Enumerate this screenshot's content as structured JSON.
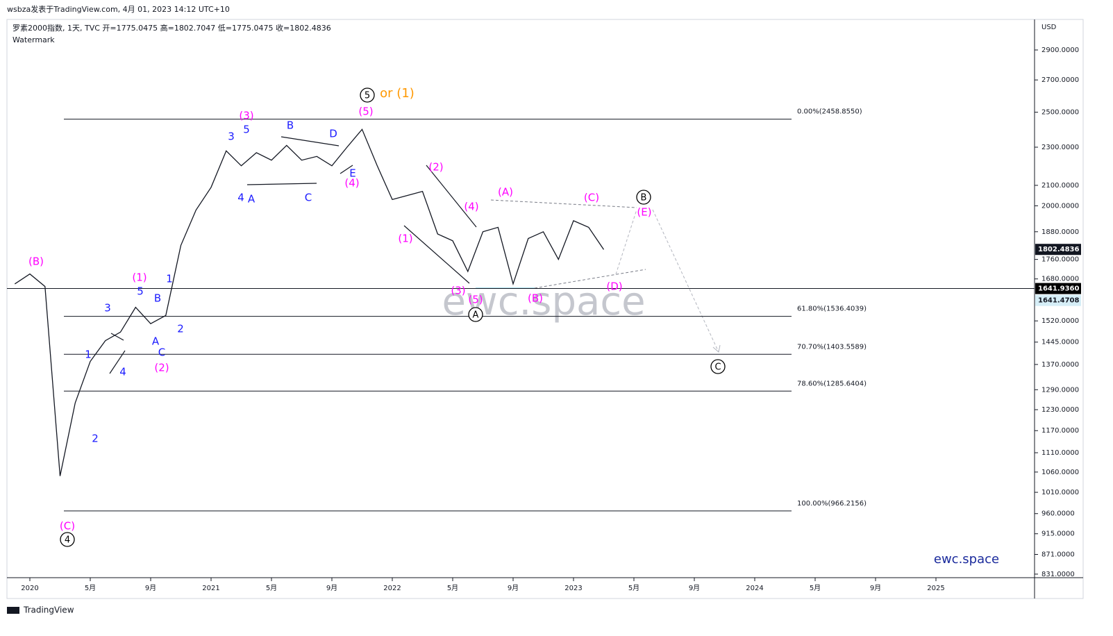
{
  "header": {
    "byline": "wsbza发表于TradingView.com, 4月 01, 2023 14:12 UTC+10",
    "symbol_line": "罗素2000指数, 1天, TVC  开=1775.0475  高=1802.7047  低=1775.0475  收=1802.4836",
    "watermark_label": "Watermark"
  },
  "footer": {
    "brand": "TradingView"
  },
  "chart_data": {
    "type": "line",
    "log": true,
    "y_label": "USD",
    "color": "#131722",
    "x": [
      "2019-12",
      "2020-01",
      "2020-02",
      "2020-03",
      "2020-04",
      "2020-05",
      "2020-06",
      "2020-07",
      "2020-08",
      "2020-09",
      "2020-10",
      "2020-11",
      "2020-12",
      "2021-01",
      "2021-02",
      "2021-03",
      "2021-04",
      "2021-05",
      "2021-06",
      "2021-07",
      "2021-08",
      "2021-09",
      "2021-10",
      "2021-11",
      "2021-12",
      "2022-01",
      "2022-02",
      "2022-03",
      "2022-04",
      "2022-05",
      "2022-06",
      "2022-07",
      "2022-08",
      "2022-09",
      "2022-10",
      "2022-11",
      "2022-12",
      "2023-01",
      "2023-02",
      "2023-03"
    ],
    "values": [
      1660,
      1700,
      1650,
      1050,
      1250,
      1380,
      1450,
      1480,
      1570,
      1510,
      1540,
      1820,
      1980,
      2090,
      2280,
      2200,
      2270,
      2230,
      2310,
      2230,
      2250,
      2200,
      2300,
      2400,
      2200,
      2030,
      2050,
      2070,
      1870,
      1840,
      1710,
      1880,
      1900,
      1660,
      1850,
      1880,
      1760,
      1930,
      1900,
      1802
    ],
    "ylim": [
      824,
      3119
    ],
    "yticks": [
      {
        "value": 2900,
        "label": "2900.0000"
      },
      {
        "value": 2700,
        "label": "2700.0000"
      },
      {
        "value": 2500,
        "label": "2500.0000"
      },
      {
        "value": 2300,
        "label": "2300.0000"
      },
      {
        "value": 2100,
        "label": "2100.0000"
      },
      {
        "value": 2000,
        "label": "2000.0000"
      },
      {
        "value": 1880,
        "label": "1880.0000"
      },
      {
        "value": 1760,
        "label": "1760.0000"
      },
      {
        "value": 1680,
        "label": "1680.0000"
      },
      {
        "value": 1520,
        "label": "1520.0000"
      },
      {
        "value": 1445,
        "label": "1445.0000"
      },
      {
        "value": 1370,
        "label": "1370.0000"
      },
      {
        "value": 1290,
        "label": "1290.0000"
      },
      {
        "value": 1230,
        "label": "1230.0000"
      },
      {
        "value": 1170,
        "label": "1170.0000"
      },
      {
        "value": 1110,
        "label": "1110.0000"
      },
      {
        "value": 1060,
        "label": "1060.0000"
      },
      {
        "value": 1010,
        "label": "1010.0000"
      },
      {
        "value": 960,
        "label": "960.0000"
      },
      {
        "value": 915,
        "label": "915.0000"
      },
      {
        "value": 871,
        "label": "871.0000"
      },
      {
        "value": 831,
        "label": "831.0000"
      }
    ],
    "xticks": [
      {
        "value": "2020-01",
        "label": "2020"
      },
      {
        "value": "2020-05",
        "label": "5月"
      },
      {
        "value": "2020-09",
        "label": "9月"
      },
      {
        "value": "2021-01",
        "label": "2021"
      },
      {
        "value": "2021-05",
        "label": "5月"
      },
      {
        "value": "2021-09",
        "label": "9月"
      },
      {
        "value": "2022-01",
        "label": "2022"
      },
      {
        "value": "2022-05",
        "label": "5月"
      },
      {
        "value": "2022-09",
        "label": "9月"
      },
      {
        "value": "2023-01",
        "label": "2023"
      },
      {
        "value": "2023-05",
        "label": "5月"
      },
      {
        "value": "2023-09",
        "label": "9月"
      },
      {
        "value": "2024-01",
        "label": "2024"
      },
      {
        "value": "2024-05",
        "label": "5月"
      },
      {
        "value": "2024-09",
        "label": "9月"
      },
      {
        "value": "2025-01",
        "label": "2025"
      }
    ],
    "fib_levels": [
      {
        "value": 2458.855,
        "label": "0.00%(2458.8550)"
      },
      {
        "value": 1536.4039,
        "label": "61.80%(1536.4039)"
      },
      {
        "value": 1403.5589,
        "label": "70.70%(1403.5589)"
      },
      {
        "value": 1285.6404,
        "label": "78.60%(1285.6404)"
      },
      {
        "value": 966.2156,
        "label": "100.00%(966.2156)"
      }
    ],
    "price_labels": [
      {
        "value": 1802.4836,
        "label": "1802.4836"
      },
      {
        "value": 1641.936,
        "label": "1641.9360"
      },
      {
        "value": 1641.4708,
        "label": "1641.4708"
      }
    ],
    "annotations": [
      {
        "text": "(B)",
        "color": "#ff00ff"
      },
      {
        "text": "(1)",
        "color": "#ff00ff"
      },
      {
        "text": "5",
        "color": "#1a1aff"
      },
      {
        "text": "B",
        "color": "#1a1aff"
      },
      {
        "text": "1",
        "color": "#1a1aff"
      },
      {
        "text": "3",
        "color": "#1a1aff"
      },
      {
        "text": "A",
        "color": "#1a1aff"
      },
      {
        "text": "C",
        "color": "#1a1aff"
      },
      {
        "text": "(2)",
        "color": "#ff00ff"
      },
      {
        "text": "2",
        "color": "#1a1aff"
      },
      {
        "text": "1",
        "color": "#1a1aff"
      },
      {
        "text": "4",
        "color": "#1a1aff"
      },
      {
        "text": "2",
        "color": "#1a1aff"
      },
      {
        "text": "(C)",
        "color": "#ff00ff"
      },
      {
        "text": "3",
        "color": "#1a1aff"
      },
      {
        "text": "(3)",
        "color": "#ff00ff"
      },
      {
        "text": "5",
        "color": "#1a1aff"
      },
      {
        "text": "4",
        "color": "#1a1aff"
      },
      {
        "text": "A",
        "color": "#1a1aff"
      },
      {
        "text": "B",
        "color": "#1a1aff"
      },
      {
        "text": "C",
        "color": "#1a1aff"
      },
      {
        "text": "D",
        "color": "#1a1aff"
      },
      {
        "text": "E",
        "color": "#1a1aff"
      },
      {
        "text": "(4)",
        "color": "#ff00ff"
      },
      {
        "text": "(5)",
        "color": "#ff00ff"
      },
      {
        "text": "or (1)",
        "color": "#ff9800"
      },
      {
        "text": "(2)",
        "color": "#ff00ff"
      },
      {
        "text": "(1)",
        "color": "#ff00ff"
      },
      {
        "text": "(4)",
        "color": "#ff00ff"
      },
      {
        "text": "(3)",
        "color": "#ff00ff"
      },
      {
        "text": "(5)",
        "color": "#ff00ff"
      },
      {
        "text": "(A)",
        "color": "#ff00ff"
      },
      {
        "text": "(B)",
        "color": "#ff00ff"
      },
      {
        "text": "(C)",
        "color": "#ff00ff"
      },
      {
        "text": "(E)",
        "color": "#ff00ff"
      },
      {
        "text": "(D)",
        "color": "#ff00ff"
      },
      {
        "text": "5",
        "color": "#000000",
        "circled": true
      },
      {
        "text": "4",
        "color": "#000000",
        "circled": true
      },
      {
        "text": "A",
        "color": "#000000",
        "circled": true
      },
      {
        "text": "B",
        "color": "#000000",
        "circled": true
      },
      {
        "text": "C",
        "color": "#000000",
        "circled": true
      }
    ],
    "watermark": "ewc.space",
    "brand_mark": "ewc.space"
  }
}
